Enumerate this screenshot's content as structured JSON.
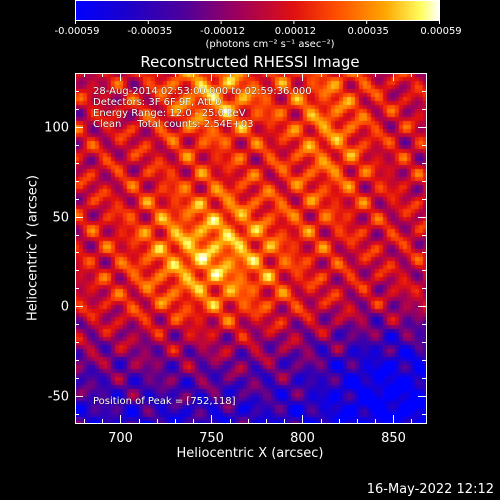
{
  "colorbar": {
    "ticks": [
      "-0.00059",
      "-0.00035",
      "-0.00012",
      "0.00012",
      "0.00035",
      "0.00059"
    ],
    "unit_label": "(photons cm⁻² s⁻¹ asec⁻²)"
  },
  "annotations": {
    "time_range": "28-Aug-2014 02:53:00.000 to 02:59:36.000",
    "detectors": "Detectors: 3F 6F 9F, Att 0",
    "energy_range": "Energy Range: 12.0 - 25.0 keV",
    "clean": "Clean     Total counts: 2.54E+03",
    "peak": "Position of Peak = [752,118]"
  },
  "footer": {
    "date": "16-May-2022 12:12"
  },
  "colors": {
    "background": "#000000",
    "text": "#ffffff"
  },
  "chart_data": {
    "type": "heatmap",
    "title": "Reconstructed RHESSI Image",
    "xlabel": "Heliocentric X (arcsec)",
    "ylabel": "Heliocentric Y (arcsec)",
    "xlim": [
      675,
      868
    ],
    "ylim": [
      -65,
      130
    ],
    "xticks": [
      700,
      750,
      800,
      850
    ],
    "yticks": [
      -50,
      0,
      50,
      100
    ],
    "colormap": "blue-purple-red-orange-yellow-white",
    "color_range": [
      -0.00059,
      0.00059
    ],
    "peak": [
      752,
      118
    ],
    "grid": false
  }
}
